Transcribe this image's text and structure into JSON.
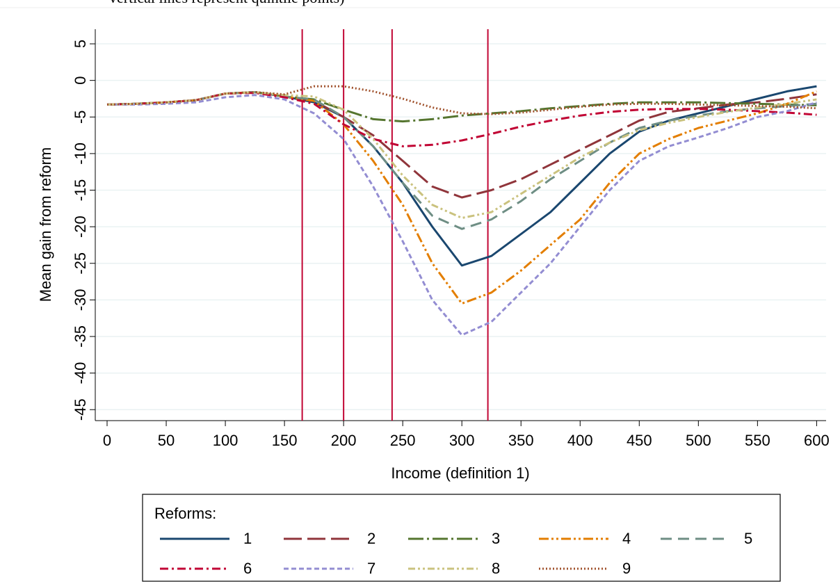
{
  "chart_data": {
    "type": "line",
    "caption": "vertical lines represent quintile points)",
    "xlabel": "Income (definition 1)",
    "ylabel": "Mean gain from reform",
    "legend_title": "Reforms:",
    "xlim": [
      -10,
      608
    ],
    "ylim": [
      -46.5,
      7
    ],
    "xticks": [
      0,
      50,
      100,
      150,
      200,
      250,
      300,
      350,
      400,
      450,
      500,
      550,
      600
    ],
    "yticks": [
      5,
      0,
      -5,
      -10,
      -15,
      -20,
      -25,
      -30,
      -35,
      -40,
      -45
    ],
    "grid": true,
    "vlines": [
      165,
      200,
      241,
      322
    ],
    "vline_color": "#c10534",
    "legend": "bottom",
    "x": [
      0,
      25,
      50,
      75,
      100,
      125,
      150,
      175,
      200,
      225,
      250,
      275,
      300,
      325,
      350,
      375,
      400,
      425,
      450,
      475,
      500,
      525,
      550,
      575,
      600
    ],
    "series": [
      {
        "name": "1",
        "color": "#1a476f",
        "values": [
          -3.3,
          -3.2,
          -3,
          -2.7,
          -1.8,
          -1.6,
          -2.2,
          -3,
          -5,
          -9,
          -14,
          -20,
          -25.3,
          -24,
          -21,
          -18,
          -14,
          -10,
          -7,
          -5.5,
          -4.5,
          -3.5,
          -2.5,
          -1.5,
          -0.8
        ]
      },
      {
        "name": "2",
        "color": "#90353b",
        "values": [
          -3.3,
          -3.2,
          -3,
          -2.7,
          -1.8,
          -1.6,
          -2.2,
          -2.8,
          -5,
          -7.5,
          -11,
          -14.5,
          -16,
          -15,
          -13.5,
          -11.5,
          -9.5,
          -7.5,
          -5.5,
          -4.3,
          -3.8,
          -3.3,
          -3,
          -2.5,
          -1.9
        ]
      },
      {
        "name": "3",
        "color": "#55752f",
        "values": [
          -3.3,
          -3.2,
          -3,
          -2.7,
          -1.8,
          -1.6,
          -2.2,
          -2.6,
          -4,
          -5.3,
          -5.6,
          -5.3,
          -4.8,
          -4.5,
          -4.2,
          -3.8,
          -3.5,
          -3.2,
          -3,
          -3,
          -3,
          -3.1,
          -3.2,
          -3.3,
          -3.4
        ]
      },
      {
        "name": "4",
        "color": "#e37e00",
        "values": [
          -3.3,
          -3.2,
          -3,
          -2.7,
          -1.8,
          -1.6,
          -2.2,
          -2.8,
          -6,
          -11,
          -17,
          -25,
          -30.5,
          -29,
          -26,
          -22.5,
          -19,
          -14,
          -10,
          -8,
          -6.5,
          -5.5,
          -4.5,
          -3.2,
          -1.5
        ]
      },
      {
        "name": "5",
        "color": "#6e8e84",
        "values": [
          -3.3,
          -3.2,
          -3,
          -2.7,
          -1.8,
          -1.6,
          -2.2,
          -2.6,
          -5,
          -9,
          -14,
          -18.5,
          -20.3,
          -19,
          -16.5,
          -13.5,
          -11,
          -8.5,
          -6.5,
          -5.5,
          -4.8,
          -4.2,
          -3.8,
          -3.5,
          -3.2
        ]
      },
      {
        "name": "6",
        "color": "#c10534",
        "values": [
          -3.3,
          -3.2,
          -3,
          -2.7,
          -1.8,
          -1.7,
          -2.3,
          -3.2,
          -6,
          -8,
          -9,
          -8.8,
          -8.2,
          -7.3,
          -6.3,
          -5.5,
          -4.8,
          -4.3,
          -4,
          -3.9,
          -3.9,
          -4,
          -4.2,
          -4.4,
          -4.7
        ]
      },
      {
        "name": "7",
        "color": "#938dd2",
        "values": [
          -3.3,
          -3.3,
          -3.2,
          -3,
          -2.3,
          -2,
          -2.6,
          -4.5,
          -8,
          -14.5,
          -22,
          -30,
          -34.8,
          -33,
          -29,
          -25,
          -20,
          -15,
          -11,
          -9,
          -7.8,
          -6.5,
          -5,
          -4.2,
          -3
        ]
      },
      {
        "name": "8",
        "color": "#cac27e",
        "values": [
          -3.3,
          -3.2,
          -3,
          -2.7,
          -1.8,
          -1.6,
          -2,
          -2.2,
          -4,
          -8,
          -13,
          -17,
          -18.8,
          -18,
          -15.5,
          -13,
          -10.5,
          -8.5,
          -6.8,
          -5.8,
          -5,
          -4.3,
          -3.7,
          -3.2,
          -2.6
        ]
      },
      {
        "name": "9",
        "color": "#a0522d",
        "values": [
          -3.3,
          -3.2,
          -3,
          -2.7,
          -1.8,
          -1.6,
          -1.9,
          -0.8,
          -0.8,
          -1.5,
          -2.5,
          -3.7,
          -4.5,
          -4.6,
          -4.4,
          -4,
          -3.6,
          -3.3,
          -3.2,
          -3.2,
          -3.3,
          -3.4,
          -3.5,
          -3.6,
          -3.8
        ]
      }
    ]
  }
}
